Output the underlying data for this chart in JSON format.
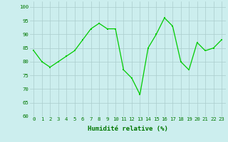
{
  "x": [
    0,
    1,
    2,
    3,
    4,
    5,
    6,
    7,
    8,
    9,
    10,
    11,
    12,
    13,
    14,
    15,
    16,
    17,
    18,
    19,
    20,
    21,
    22,
    23
  ],
  "y": [
    84,
    80,
    78,
    80,
    82,
    84,
    88,
    92,
    94,
    92,
    92,
    77,
    74,
    68,
    85,
    90,
    96,
    93,
    80,
    77,
    87,
    84,
    85,
    88
  ],
  "xlabel": "Humidité relative (%)",
  "ylim": [
    60,
    102
  ],
  "xlim": [
    -0.5,
    23.5
  ],
  "yticks": [
    60,
    65,
    70,
    75,
    80,
    85,
    90,
    95,
    100
  ],
  "xticks": [
    0,
    1,
    2,
    3,
    4,
    5,
    6,
    7,
    8,
    9,
    10,
    11,
    12,
    13,
    14,
    15,
    16,
    17,
    18,
    19,
    20,
    21,
    22,
    23
  ],
  "line_color": "#00cc00",
  "marker_color": "#00cc00",
  "bg_color": "#cceeee",
  "grid_color": "#aacccc",
  "tick_label_color": "#007700",
  "xlabel_color": "#007700",
  "tick_fontsize": 5.2,
  "xlabel_fontsize": 6.5
}
